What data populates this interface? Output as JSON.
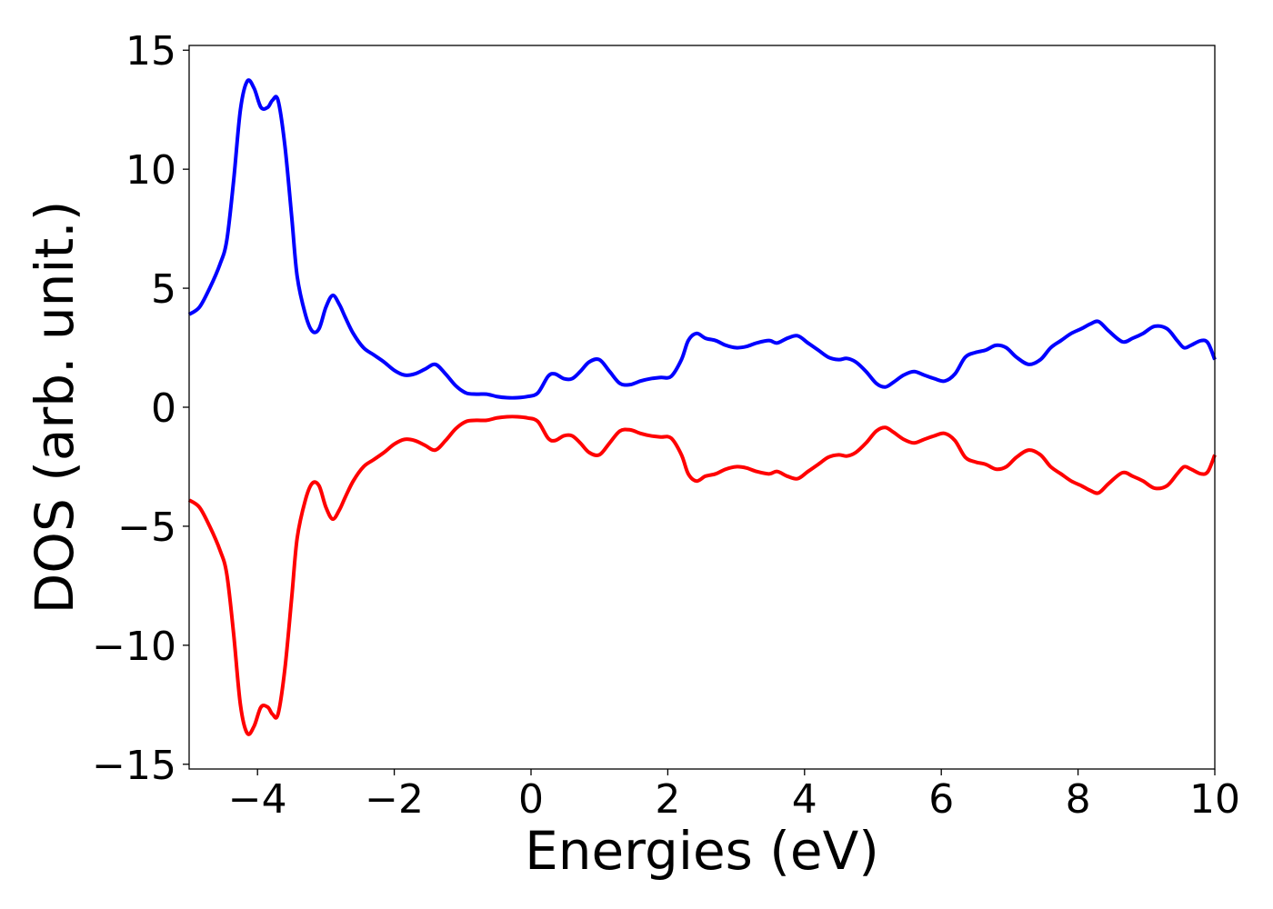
{
  "chart_data": {
    "type": "line",
    "title": "",
    "xlabel": "Energies (eV)",
    "ylabel": "DOS (arb. unit.)",
    "xlim": [
      -5,
      10
    ],
    "ylim": [
      -15.2,
      15.2
    ],
    "xticks": [
      -4,
      -2,
      0,
      2,
      4,
      6,
      8,
      10
    ],
    "xtick_labels": [
      "−4",
      "−2",
      "0",
      "2",
      "4",
      "6",
      "8",
      "10"
    ],
    "yticks": [
      15,
      10,
      5,
      0,
      -5,
      -10,
      -15
    ],
    "ytick_labels": [
      "15",
      "10",
      "5",
      "0",
      "−5",
      "−10",
      "−15"
    ],
    "grid": false,
    "legend": "none",
    "series": [
      {
        "color": "#0000ff",
        "x": [
          -5.0,
          -4.85,
          -4.7,
          -4.55,
          -4.45,
          -4.35,
          -4.25,
          -4.15,
          -4.05,
          -3.95,
          -3.85,
          -3.78,
          -3.7,
          -3.6,
          -3.5,
          -3.42,
          -3.3,
          -3.2,
          -3.1,
          -3.0,
          -2.9,
          -2.8,
          -2.72,
          -2.6,
          -2.45,
          -2.3,
          -2.15,
          -2.0,
          -1.85,
          -1.7,
          -1.55,
          -1.4,
          -1.25,
          -1.1,
          -0.95,
          -0.8,
          -0.65,
          -0.5,
          -0.35,
          -0.2,
          -0.05,
          0.1,
          0.25,
          0.35,
          0.48,
          0.6,
          0.72,
          0.85,
          1.0,
          1.15,
          1.3,
          1.45,
          1.6,
          1.75,
          1.9,
          2.05,
          2.2,
          2.3,
          2.42,
          2.55,
          2.7,
          2.85,
          3.0,
          3.15,
          3.3,
          3.48,
          3.6,
          3.75,
          3.9,
          4.05,
          4.2,
          4.35,
          4.5,
          4.62,
          4.75,
          4.9,
          5.05,
          5.18,
          5.3,
          5.45,
          5.6,
          5.75,
          5.9,
          6.05,
          6.2,
          6.35,
          6.5,
          6.65,
          6.8,
          6.95,
          7.1,
          7.28,
          7.45,
          7.6,
          7.75,
          7.9,
          8.05,
          8.18,
          8.3,
          8.45,
          8.65,
          8.8,
          8.95,
          9.12,
          9.3,
          9.45,
          9.55,
          9.65,
          9.8,
          9.9,
          10.0
        ],
        "y": [
          3.9,
          4.2,
          5.0,
          6.0,
          7.0,
          9.5,
          12.5,
          13.7,
          13.4,
          12.6,
          12.6,
          12.9,
          12.9,
          11.0,
          8.0,
          5.5,
          3.9,
          3.2,
          3.3,
          4.2,
          4.7,
          4.3,
          3.8,
          3.1,
          2.5,
          2.2,
          1.9,
          1.55,
          1.35,
          1.4,
          1.6,
          1.8,
          1.4,
          0.9,
          0.6,
          0.55,
          0.55,
          0.45,
          0.4,
          0.4,
          0.45,
          0.6,
          1.3,
          1.4,
          1.2,
          1.2,
          1.5,
          1.9,
          2.0,
          1.5,
          1.0,
          0.95,
          1.1,
          1.2,
          1.25,
          1.3,
          2.0,
          2.8,
          3.1,
          2.9,
          2.8,
          2.6,
          2.5,
          2.55,
          2.7,
          2.8,
          2.7,
          2.9,
          3.0,
          2.7,
          2.4,
          2.1,
          2.0,
          2.05,
          1.9,
          1.5,
          1.0,
          0.85,
          1.05,
          1.35,
          1.5,
          1.35,
          1.2,
          1.1,
          1.4,
          2.1,
          2.3,
          2.4,
          2.6,
          2.5,
          2.1,
          1.8,
          2.0,
          2.5,
          2.8,
          3.1,
          3.3,
          3.5,
          3.6,
          3.2,
          2.75,
          2.9,
          3.1,
          3.4,
          3.3,
          2.8,
          2.5,
          2.6,
          2.8,
          2.7,
          2.0
        ]
      },
      {
        "color": "#ff0000",
        "x": [
          -5.0,
          -4.85,
          -4.7,
          -4.55,
          -4.45,
          -4.35,
          -4.25,
          -4.15,
          -4.05,
          -3.95,
          -3.85,
          -3.78,
          -3.7,
          -3.6,
          -3.5,
          -3.42,
          -3.3,
          -3.2,
          -3.1,
          -3.0,
          -2.9,
          -2.8,
          -2.72,
          -2.6,
          -2.45,
          -2.3,
          -2.15,
          -2.0,
          -1.85,
          -1.7,
          -1.55,
          -1.4,
          -1.25,
          -1.1,
          -0.95,
          -0.8,
          -0.65,
          -0.5,
          -0.35,
          -0.2,
          -0.05,
          0.1,
          0.25,
          0.35,
          0.48,
          0.6,
          0.72,
          0.85,
          1.0,
          1.15,
          1.3,
          1.45,
          1.6,
          1.75,
          1.9,
          2.05,
          2.2,
          2.3,
          2.42,
          2.55,
          2.7,
          2.85,
          3.0,
          3.15,
          3.3,
          3.48,
          3.6,
          3.75,
          3.9,
          4.05,
          4.2,
          4.35,
          4.5,
          4.62,
          4.75,
          4.9,
          5.05,
          5.18,
          5.3,
          5.45,
          5.6,
          5.75,
          5.9,
          6.05,
          6.2,
          6.35,
          6.5,
          6.65,
          6.8,
          6.95,
          7.1,
          7.28,
          7.45,
          7.6,
          7.75,
          7.9,
          8.05,
          8.18,
          8.3,
          8.45,
          8.65,
          8.8,
          8.95,
          9.12,
          9.3,
          9.45,
          9.55,
          9.65,
          9.8,
          9.9,
          10.0
        ],
        "y": [
          -3.9,
          -4.2,
          -5.0,
          -6.0,
          -7.0,
          -9.5,
          -12.5,
          -13.7,
          -13.4,
          -12.6,
          -12.6,
          -12.9,
          -12.9,
          -11.0,
          -8.0,
          -5.5,
          -3.9,
          -3.2,
          -3.3,
          -4.2,
          -4.7,
          -4.3,
          -3.8,
          -3.1,
          -2.5,
          -2.2,
          -1.9,
          -1.55,
          -1.35,
          -1.4,
          -1.6,
          -1.8,
          -1.4,
          -0.9,
          -0.6,
          -0.55,
          -0.55,
          -0.45,
          -0.4,
          -0.4,
          -0.45,
          -0.6,
          -1.3,
          -1.4,
          -1.2,
          -1.2,
          -1.5,
          -1.9,
          -2.0,
          -1.5,
          -1.0,
          -0.95,
          -1.1,
          -1.2,
          -1.25,
          -1.3,
          -2.0,
          -2.8,
          -3.1,
          -2.9,
          -2.8,
          -2.6,
          -2.5,
          -2.55,
          -2.7,
          -2.8,
          -2.7,
          -2.9,
          -3.0,
          -2.7,
          -2.4,
          -2.1,
          -2.0,
          -2.05,
          -1.9,
          -1.5,
          -1.0,
          -0.85,
          -1.05,
          -1.35,
          -1.5,
          -1.35,
          -1.2,
          -1.1,
          -1.4,
          -2.1,
          -2.3,
          -2.4,
          -2.6,
          -2.5,
          -2.1,
          -1.8,
          -2.0,
          -2.5,
          -2.8,
          -3.1,
          -3.3,
          -3.5,
          -3.6,
          -3.2,
          -2.75,
          -2.9,
          -3.1,
          -3.4,
          -3.3,
          -2.8,
          -2.5,
          -2.6,
          -2.8,
          -2.7,
          -2.0
        ]
      }
    ]
  }
}
